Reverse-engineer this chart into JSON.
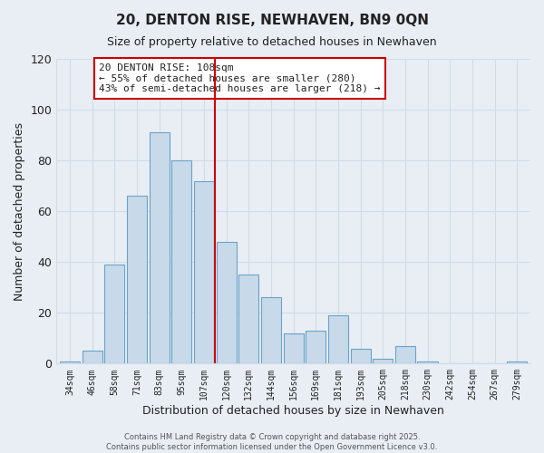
{
  "title": "20, DENTON RISE, NEWHAVEN, BN9 0QN",
  "subtitle": "Size of property relative to detached houses in Newhaven",
  "xlabel": "Distribution of detached houses by size in Newhaven",
  "ylabel": "Number of detached properties",
  "bar_labels": [
    "34sqm",
    "46sqm",
    "58sqm",
    "71sqm",
    "83sqm",
    "95sqm",
    "107sqm",
    "120sqm",
    "132sqm",
    "144sqm",
    "156sqm",
    "169sqm",
    "181sqm",
    "193sqm",
    "205sqm",
    "218sqm",
    "230sqm",
    "242sqm",
    "254sqm",
    "267sqm",
    "279sqm"
  ],
  "bar_values": [
    1,
    5,
    39,
    66,
    91,
    80,
    72,
    48,
    35,
    26,
    12,
    13,
    19,
    6,
    2,
    7,
    1,
    0,
    0,
    0,
    1
  ],
  "bar_color": "#c8daea",
  "bar_edge_color": "#6ba3c8",
  "bar_edge_width": 0.8,
  "vline_x": 6.5,
  "vline_color": "#cc0000",
  "annotation_title": "20 DENTON RISE: 108sqm",
  "annotation_line1": "← 55% of detached houses are smaller (280)",
  "annotation_line2": "43% of semi-detached houses are larger (218) →",
  "annotation_box_color": "#ffffff",
  "annotation_box_edge_color": "#cc0000",
  "ylim": [
    0,
    120
  ],
  "yticks": [
    0,
    20,
    40,
    60,
    80,
    100,
    120
  ],
  "grid_color": "#d0dce8",
  "background_color": "#e8eef4",
  "footer_line1": "Contains HM Land Registry data © Crown copyright and database right 2025.",
  "footer_line2": "Contains public sector information licensed under the Open Government Licence v3.0."
}
